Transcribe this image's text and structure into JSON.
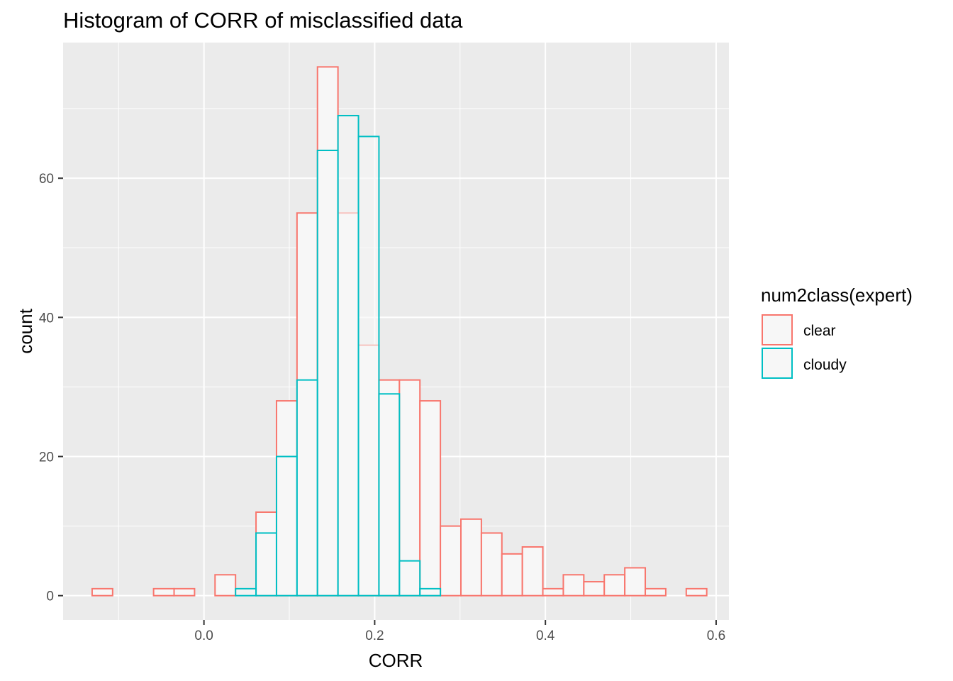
{
  "colors": {
    "clear": "#F8766D",
    "cloudy": "#00BFC4",
    "panel": "#EBEBEB",
    "grid": "#FFFFFF",
    "bar_fill": "#F7F7F7"
  },
  "chart_data": {
    "type": "histogram",
    "title": "Histogram of CORR of misclassified data",
    "xlabel": "CORR",
    "ylabel": "count",
    "xlim": [
      -0.165,
      0.615
    ],
    "ylim": [
      -3.5,
      79.5
    ],
    "x_ticks": [
      0.0,
      0.2,
      0.4,
      0.6
    ],
    "x_tick_labels": [
      "0.0",
      "0.2",
      "0.4",
      "0.6"
    ],
    "y_ticks": [
      0,
      20,
      40,
      60
    ],
    "y_tick_labels": [
      "0",
      "20",
      "40",
      "60"
    ],
    "grid": true,
    "bin_width": 0.024,
    "bin_edges_start": -0.131,
    "legend": {
      "title": "num2class(expert)",
      "position": "right",
      "entries": [
        "clear",
        "cloudy"
      ]
    },
    "series": [
      {
        "name": "clear",
        "values": [
          1,
          0,
          0,
          1,
          1,
          0,
          3,
          0,
          12,
          28,
          55,
          76,
          55,
          36,
          31,
          31,
          28,
          10,
          11,
          9,
          6,
          7,
          1,
          3,
          2,
          3,
          4,
          1,
          0,
          1
        ]
      },
      {
        "name": "cloudy",
        "values": [
          0,
          0,
          0,
          0,
          0,
          0,
          0,
          1,
          9,
          20,
          31,
          64,
          69,
          66,
          29,
          5,
          1,
          0,
          0,
          0,
          0,
          0,
          0,
          0,
          0,
          0,
          0,
          0,
          0,
          0
        ]
      }
    ]
  }
}
